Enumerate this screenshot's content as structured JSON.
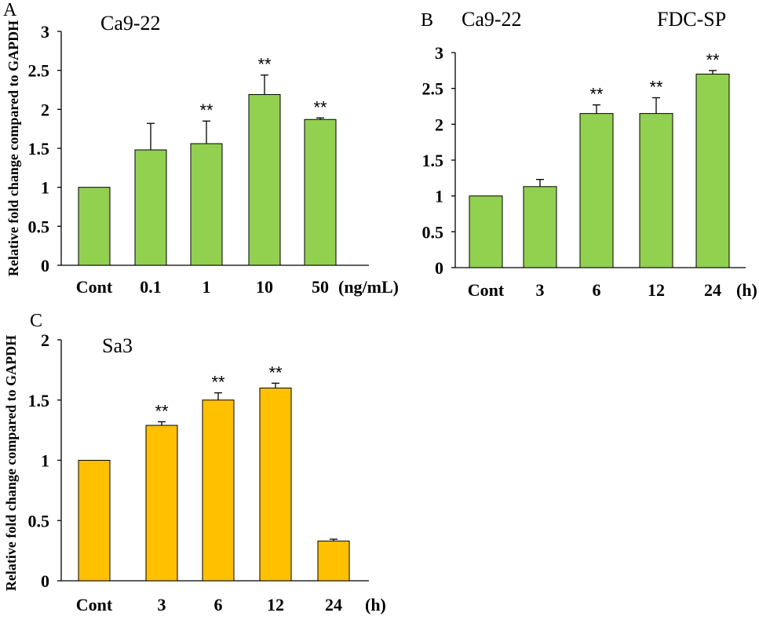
{
  "chart_data": [
    {
      "type": "bar",
      "panel": "A",
      "title": "Ca9-22",
      "subtitle": "",
      "ylabel": "Relative fold change compared to GAPDH",
      "xlabel": "",
      "unit": "(ng/mL)",
      "categories": [
        "Cont",
        "0.1",
        "1",
        "10",
        "50"
      ],
      "values": [
        1.0,
        1.48,
        1.56,
        2.19,
        1.87
      ],
      "errors": [
        0,
        0.34,
        0.29,
        0.25,
        0.02
      ],
      "significance": [
        "",
        "",
        "**",
        "**",
        "**"
      ],
      "ylim": [
        0,
        3
      ],
      "yticks": [
        "0",
        "0.5",
        "1",
        "1.5",
        "2",
        "2.5",
        "3"
      ],
      "color": "#92d050"
    },
    {
      "type": "bar",
      "panel": "B",
      "title": "Ca9-22",
      "subtitle": "FDC-SP",
      "ylabel": "",
      "xlabel": "",
      "unit": "(h)",
      "categories": [
        "Cont",
        "3",
        "6",
        "12",
        "24"
      ],
      "values": [
        1.0,
        1.13,
        2.15,
        2.15,
        2.7
      ],
      "errors": [
        0,
        0.1,
        0.12,
        0.22,
        0.05
      ],
      "significance": [
        "",
        "",
        "**",
        "**",
        "**"
      ],
      "ylim": [
        0,
        3
      ],
      "yticks": [
        "0",
        "0.5",
        "1",
        "1.5",
        "2",
        "2.5",
        "3"
      ],
      "color": "#92d050"
    },
    {
      "type": "bar",
      "panel": "C",
      "title": "Sa3",
      "subtitle": "",
      "ylabel": "Relative fold change compared to GAPDH",
      "xlabel": "",
      "unit": "(h)",
      "categories": [
        "Cont",
        "3",
        "6",
        "12",
        "24"
      ],
      "values": [
        1.0,
        1.29,
        1.5,
        1.6,
        0.33
      ],
      "errors": [
        0,
        0.03,
        0.06,
        0.04,
        0.015
      ],
      "significance": [
        "",
        "**",
        "**",
        "**",
        ""
      ],
      "ylim": [
        0,
        2
      ],
      "yticks": [
        "0",
        "0.5",
        "1",
        "1.5",
        "2"
      ],
      "color": "#ffc000"
    }
  ]
}
